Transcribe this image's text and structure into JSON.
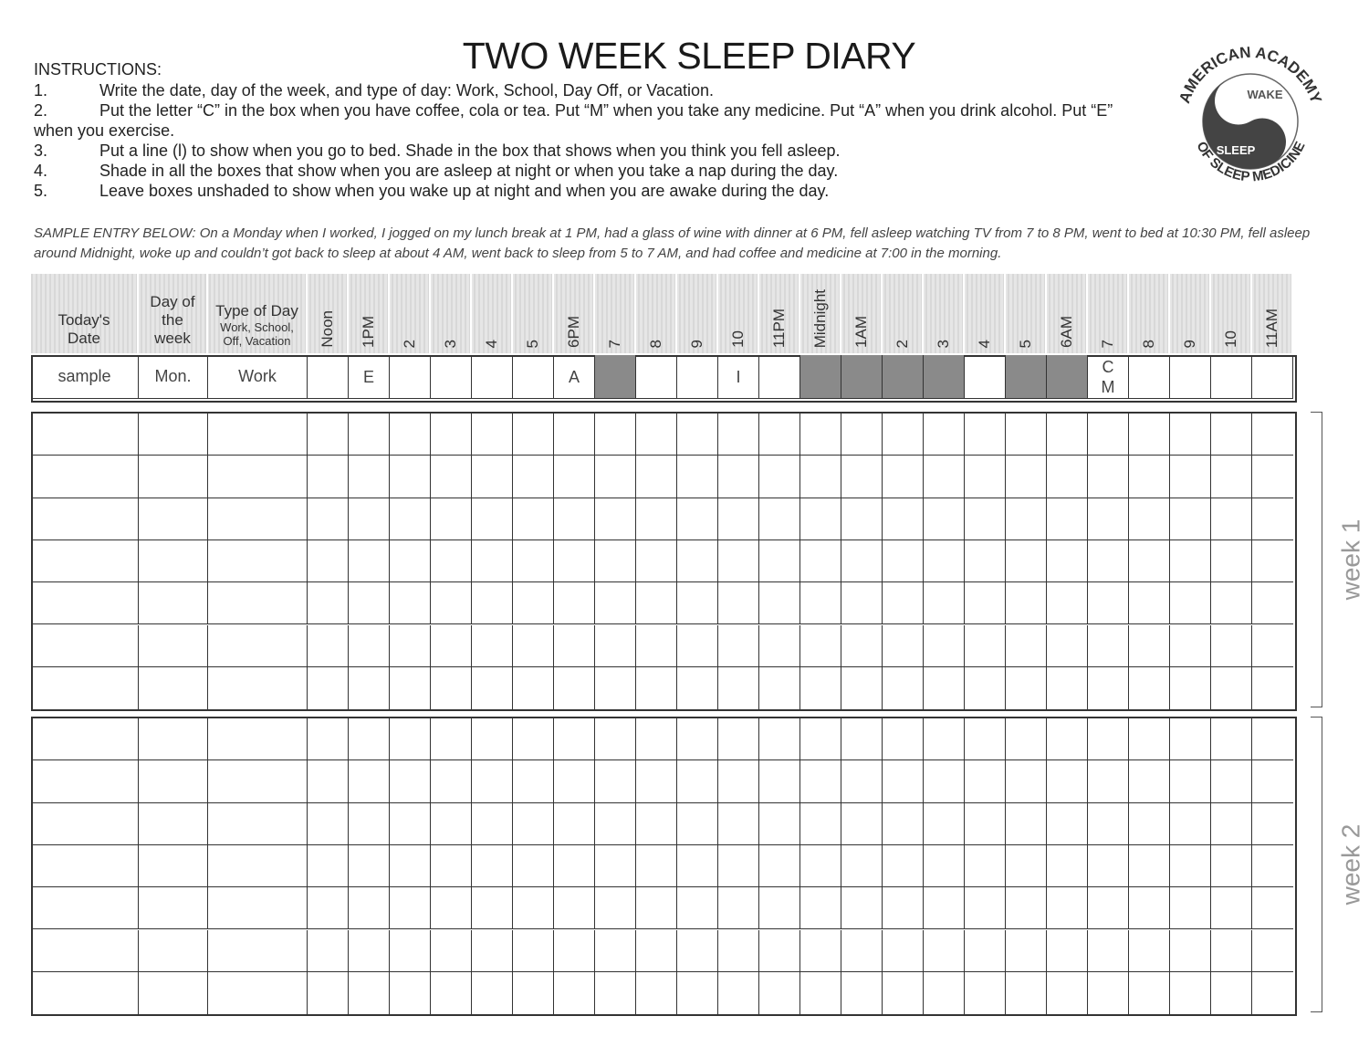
{
  "title": "TWO WEEK SLEEP DIARY",
  "instructions": {
    "heading": "INSTRUCTIONS:",
    "items": [
      {
        "num": "1.",
        "text": "Write the date, day of the week, and type of day:  Work, School, Day Off, or Vacation."
      },
      {
        "num": "2.",
        "text": "Put the letter “C” in the box when you have coffee, cola or tea. Put “M” when you take any medicine.  Put “A” when you drink alcohol.  Put “E” when you exercise."
      },
      {
        "num": "3.",
        "text": "Put a line (l) to show when you go to bed. Shade in the box that shows when you think you fell asleep."
      },
      {
        "num": "4.",
        "text": "Shade in all the boxes that show when you are asleep at night or when you take a nap during the day."
      },
      {
        "num": "5.",
        "text": "Leave boxes unshaded to show when you wake up at night and when you are awake during the day."
      }
    ]
  },
  "logo": {
    "top": "AMERICAN ACADEMY",
    "bottom": "OF SLEEP MEDICINE",
    "wake": "WAKE",
    "sleep": "SLEEP"
  },
  "sample_text": "SAMPLE ENTRY BELOW:  On a Monday when I worked, I jogged on my lunch break at 1 PM, had a glass of wine with dinner at 6 PM, fell asleep watching TV from 7 to 8 PM, went to bed at 10:30 PM, fell asleep around Midnight, woke up and couldn’t got back to sleep at about 4 AM, went back to sleep from 5 to 7 AM, and had coffee and medicine at 7:00 in the morning.",
  "header": {
    "date": "Today's Date",
    "day": [
      "Day of",
      "the",
      "week"
    ],
    "type": "Type of Day",
    "type_sub": [
      "Work, School,",
      "Off, Vacation"
    ],
    "hours": [
      "Noon",
      "1PM",
      "2",
      "3",
      "4",
      "5",
      "6PM",
      "7",
      "8",
      "9",
      "10",
      "11PM",
      "Midnight",
      "1AM",
      "2",
      "3",
      "4",
      "5",
      "6AM",
      "7",
      "8",
      "9",
      "10",
      "11AM"
    ]
  },
  "sample": {
    "date": "sample",
    "day": "Mon.",
    "type": "Work",
    "marks": [
      "",
      "E",
      "",
      "",
      "",
      "",
      "A",
      "",
      "",
      "",
      "I",
      "",
      "",
      "",
      "",
      "",
      "",
      "",
      "",
      "C\nM",
      "",
      "",
      "",
      ""
    ],
    "shaded": [
      false,
      false,
      false,
      false,
      false,
      false,
      false,
      true,
      false,
      false,
      false,
      false,
      true,
      true,
      true,
      true,
      false,
      true,
      true,
      false,
      false,
      false,
      false,
      false
    ]
  },
  "weeks": [
    {
      "label": "week 1",
      "rows": 7
    },
    {
      "label": "week 2",
      "rows": 7
    }
  ],
  "colors": {
    "shade": "#8a8a8a",
    "header_bg": "#e0e0e0",
    "grid": "#333333"
  }
}
